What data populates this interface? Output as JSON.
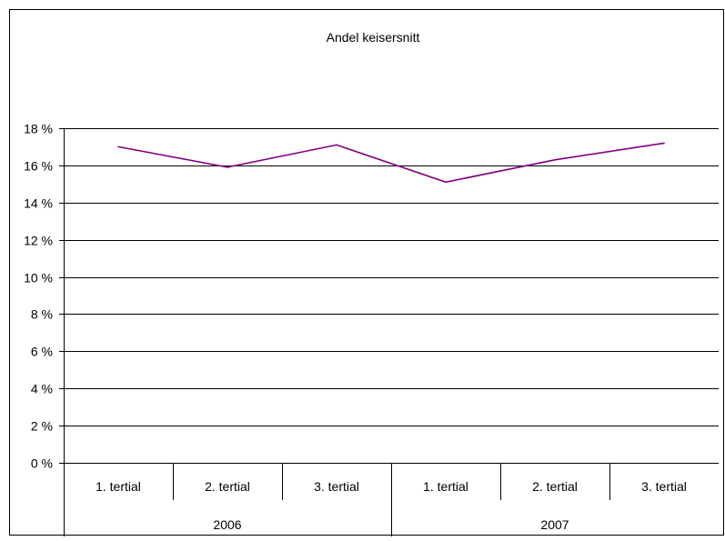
{
  "chart_data": {
    "type": "line",
    "title": "Andel keisersnitt",
    "xlabel": "",
    "ylabel": "",
    "categories": [
      "1. tertial",
      "2. tertial",
      "3. tertial",
      "1. tertial",
      "2. tertial",
      "3. tertial"
    ],
    "groups": [
      {
        "label": "2006",
        "span": 3
      },
      {
        "label": "2007",
        "span": 3
      }
    ],
    "series": [
      {
        "values": [
          17.0,
          15.9,
          17.1,
          15.1,
          16.3,
          17.2
        ],
        "color": "#800080"
      }
    ],
    "ylim": [
      0,
      18
    ],
    "ytick_step": 2,
    "ytick_labels": [
      "0 %",
      "2 %",
      "4 %",
      "6 %",
      "8 %",
      "10 %",
      "12 %",
      "14 %",
      "16 %",
      "18 %"
    ],
    "grid": true,
    "legend": "none"
  }
}
